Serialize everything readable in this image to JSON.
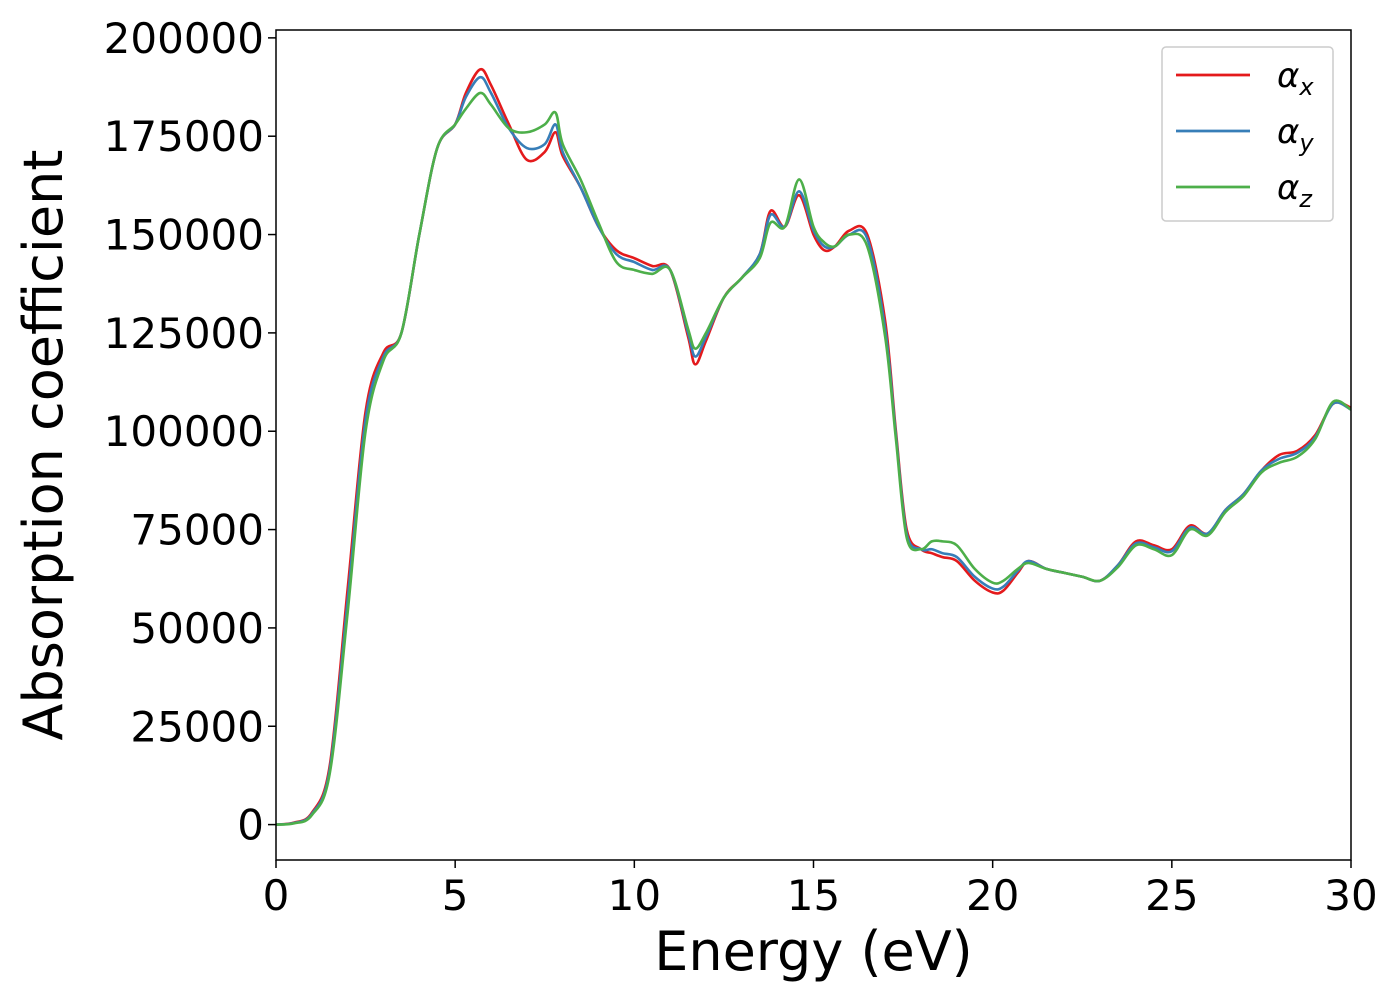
{
  "chart_data": {
    "type": "line",
    "title": "",
    "xlabel": "Energy (eV)",
    "ylabel": "Absorption coefficient",
    "xlim": [
      0,
      30
    ],
    "ylim": [
      -9000,
      202000
    ],
    "xticks": [
      0,
      5,
      10,
      15,
      20,
      25,
      30
    ],
    "xtick_labels": [
      "0",
      "5",
      "10",
      "15",
      "20",
      "25",
      "30"
    ],
    "yticks": [
      0,
      25000,
      50000,
      75000,
      100000,
      125000,
      150000,
      175000,
      200000
    ],
    "ytick_labels": [
      "0",
      "25000",
      "50000",
      "75000",
      "100000",
      "125000",
      "150000",
      "175000",
      "200000"
    ],
    "grid": false,
    "legend": "top-right",
    "series": [
      {
        "name": "x",
        "color": "#e41a1c",
        "x": [
          0,
          0.5,
          1.0,
          1.5,
          2.0,
          2.5,
          3.0,
          3.5,
          4.0,
          4.5,
          5.0,
          5.3,
          5.7,
          6.0,
          6.5,
          7.0,
          7.5,
          7.8,
          8.0,
          8.5,
          9.0,
          9.5,
          10.0,
          10.5,
          11.0,
          11.5,
          11.7,
          12.0,
          12.5,
          13.0,
          13.5,
          13.8,
          14.2,
          14.6,
          15.0,
          15.3,
          15.6,
          16.0,
          16.5,
          17.0,
          17.3,
          17.6,
          18.0,
          18.3,
          18.6,
          19.0,
          19.5,
          20.0,
          20.3,
          20.7,
          21.0,
          21.5,
          22.0,
          22.5,
          23.0,
          23.5,
          24.0,
          24.5,
          25.0,
          25.5,
          26.0,
          26.5,
          27.0,
          27.5,
          28.0,
          28.5,
          29.0,
          29.5,
          30.0
        ],
        "values": [
          0,
          500,
          3000,
          15000,
          60000,
          105000,
          120000,
          125000,
          150000,
          172000,
          178000,
          186000,
          192000,
          188000,
          178000,
          169000,
          171000,
          176000,
          170000,
          162000,
          152000,
          146000,
          144000,
          142000,
          141000,
          124000,
          117000,
          123000,
          134000,
          139000,
          145000,
          156000,
          152000,
          160000,
          150000,
          146000,
          147000,
          151000,
          150000,
          128000,
          100000,
          75000,
          70000,
          69000,
          68000,
          67000,
          62000,
          59000,
          59500,
          64000,
          67000,
          65000,
          64000,
          63000,
          62000,
          66000,
          72000,
          71000,
          70000,
          76000,
          74000,
          80000,
          84000,
          90000,
          94000,
          95000,
          99000,
          107000,
          106000
        ]
      },
      {
        "name": "y",
        "color": "#377eb8",
        "x": [
          0,
          0.5,
          1.0,
          1.5,
          2.0,
          2.5,
          3.0,
          3.5,
          4.0,
          4.5,
          5.0,
          5.3,
          5.7,
          6.0,
          6.5,
          7.0,
          7.5,
          7.8,
          8.0,
          8.5,
          9.0,
          9.5,
          10.0,
          10.5,
          11.0,
          11.5,
          11.7,
          12.0,
          12.5,
          13.0,
          13.5,
          13.8,
          14.2,
          14.6,
          15.0,
          15.3,
          15.6,
          16.0,
          16.5,
          17.0,
          17.3,
          17.6,
          18.0,
          18.3,
          18.6,
          19.0,
          19.5,
          20.0,
          20.3,
          20.7,
          21.0,
          21.5,
          22.0,
          22.5,
          23.0,
          23.5,
          24.0,
          24.5,
          25.0,
          25.5,
          26.0,
          26.5,
          27.0,
          27.5,
          28.0,
          28.5,
          29.0,
          29.5,
          30.0
        ],
        "values": [
          0,
          400,
          2700,
          14000,
          57000,
          103000,
          119000,
          125000,
          150000,
          172000,
          178000,
          185000,
          190000,
          186000,
          177000,
          172000,
          173000,
          178000,
          171000,
          162000,
          152000,
          145000,
          143000,
          141000,
          141000,
          125000,
          119000,
          124000,
          134000,
          139000,
          145000,
          155000,
          152000,
          161000,
          151000,
          147000,
          147000,
          150000,
          149000,
          126000,
          99000,
          74000,
          70000,
          70000,
          69000,
          68000,
          63000,
          60000,
          60500,
          64500,
          67000,
          65000,
          64000,
          63000,
          62000,
          66000,
          71500,
          70500,
          69500,
          75500,
          74000,
          80000,
          84000,
          90000,
          93000,
          94500,
          98500,
          107000,
          105500
        ]
      },
      {
        "name": "z",
        "color": "#4daf4a",
        "x": [
          0,
          0.5,
          1.0,
          1.5,
          2.0,
          2.5,
          3.0,
          3.5,
          4.0,
          4.5,
          5.0,
          5.3,
          5.7,
          6.0,
          6.5,
          7.0,
          7.5,
          7.8,
          8.0,
          8.5,
          9.0,
          9.5,
          10.0,
          10.5,
          11.0,
          11.5,
          11.7,
          12.0,
          12.5,
          13.0,
          13.5,
          13.8,
          14.2,
          14.6,
          15.0,
          15.3,
          15.6,
          16.0,
          16.5,
          17.0,
          17.3,
          17.6,
          18.0,
          18.3,
          18.6,
          19.0,
          19.5,
          20.0,
          20.3,
          20.7,
          21.0,
          21.5,
          22.0,
          22.5,
          23.0,
          23.5,
          24.0,
          24.5,
          25.0,
          25.5,
          26.0,
          26.5,
          27.0,
          27.5,
          28.0,
          28.5,
          29.0,
          29.5,
          30.0
        ],
        "values": [
          0,
          300,
          2400,
          13000,
          54000,
          100000,
          118000,
          125000,
          150000,
          172000,
          178000,
          182000,
          186000,
          183000,
          177000,
          176000,
          178000,
          181000,
          173000,
          164000,
          153000,
          143000,
          141000,
          140000,
          141000,
          126000,
          121000,
          125000,
          134000,
          139000,
          144000,
          153000,
          152000,
          164000,
          152000,
          148000,
          147000,
          150000,
          147000,
          124000,
          98000,
          73000,
          70000,
          72000,
          72000,
          71000,
          65000,
          61500,
          62000,
          65000,
          66500,
          65000,
          64000,
          63000,
          62000,
          65500,
          71000,
          70000,
          68500,
          75000,
          73500,
          79500,
          83500,
          89500,
          92000,
          93500,
          98000,
          107500,
          105500
        ]
      }
    ]
  },
  "legend": {
    "entries": [
      {
        "symbol": "α",
        "sub": "x",
        "color": "#e41a1c"
      },
      {
        "symbol": "α",
        "sub": "y",
        "color": "#377eb8"
      },
      {
        "symbol": "α",
        "sub": "z",
        "color": "#4daf4a"
      }
    ]
  }
}
